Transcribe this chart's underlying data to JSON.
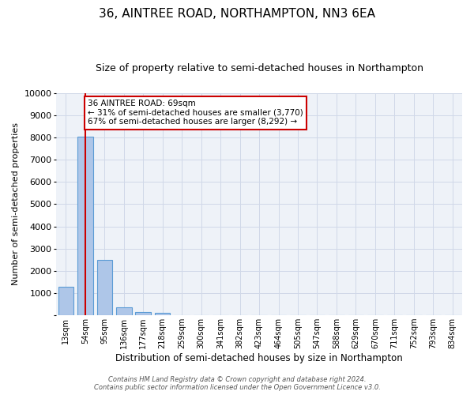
{
  "title": "36, AINTREE ROAD, NORTHAMPTON, NN3 6EA",
  "subtitle": "Size of property relative to semi-detached houses in Northampton",
  "xlabel": "Distribution of semi-detached houses by size in Northampton",
  "ylabel": "Number of semi-detached properties",
  "footer_line1": "Contains HM Land Registry data © Crown copyright and database right 2024.",
  "footer_line2": "Contains public sector information licensed under the Open Government Licence v3.0.",
  "categories": [
    "13sqm",
    "54sqm",
    "95sqm",
    "136sqm",
    "177sqm",
    "218sqm",
    "259sqm",
    "300sqm",
    "341sqm",
    "382sqm",
    "423sqm",
    "464sqm",
    "505sqm",
    "547sqm",
    "588sqm",
    "629sqm",
    "670sqm",
    "711sqm",
    "752sqm",
    "793sqm",
    "834sqm"
  ],
  "values": [
    1300,
    8050,
    2500,
    370,
    150,
    120,
    0,
    0,
    0,
    0,
    0,
    0,
    0,
    0,
    0,
    0,
    0,
    0,
    0,
    0,
    0
  ],
  "bar_color": "#aec6e8",
  "bar_edge_color": "#5b9bd5",
  "annotation_label": "36 AINTREE ROAD: 69sqm",
  "annotation_smaller": "← 31% of semi-detached houses are smaller (3,770)",
  "annotation_larger": "67% of semi-detached houses are larger (8,292) →",
  "annotation_box_color": "#ffffff",
  "annotation_box_edge": "#cc0000",
  "vline_color": "#cc0000",
  "vline_x": 1.0,
  "ylim": [
    0,
    10000
  ],
  "yticks": [
    0,
    1000,
    2000,
    3000,
    4000,
    5000,
    6000,
    7000,
    8000,
    9000,
    10000
  ],
  "grid_color": "#d0d8e8",
  "bg_color": "#eef2f8",
  "title_fontsize": 11,
  "subtitle_fontsize": 9
}
